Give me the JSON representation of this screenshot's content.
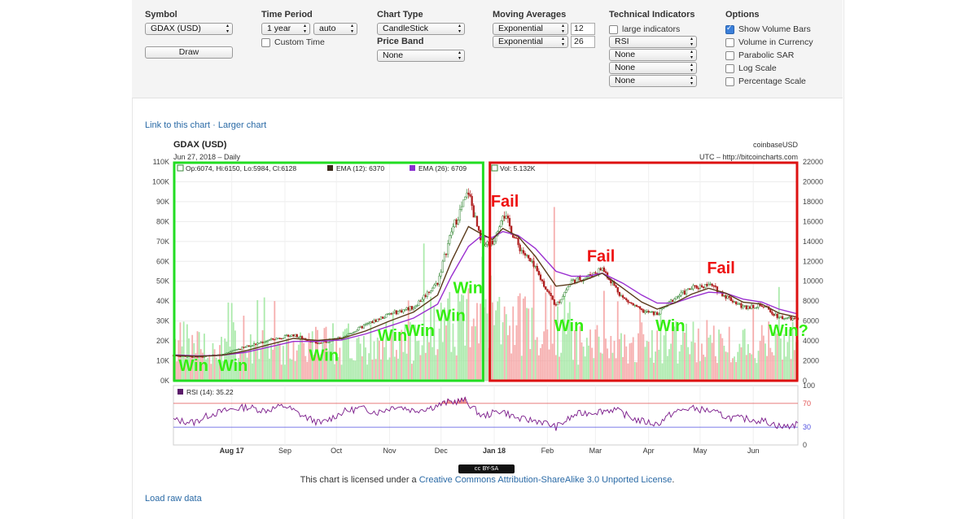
{
  "controls": {
    "symbol": {
      "heading": "Symbol",
      "value": "GDAX (USD)",
      "draw_label": "Draw"
    },
    "time_period": {
      "heading": "Time Period",
      "range": "1 year",
      "resolution": "auto",
      "custom_time_label": "Custom Time"
    },
    "chart_type": {
      "heading": "Chart Type",
      "value": "CandleStick",
      "price_band_heading": "Price Band",
      "price_band": "None"
    },
    "moving_averages": {
      "heading": "Moving Averages",
      "ma1_type": "Exponential",
      "ma1_period": "12",
      "ma2_type": "Exponential",
      "ma2_period": "26"
    },
    "technical_indicators": {
      "heading": "Technical Indicators",
      "large_label": "large indicators",
      "ind1": "RSI",
      "ind2": "None",
      "ind3": "None",
      "ind4": "None"
    },
    "options": {
      "heading": "Options",
      "items": [
        {
          "label": "Show Volume Bars",
          "checked": true
        },
        {
          "label": "Volume in Currency",
          "checked": false
        },
        {
          "label": "Parabolic SAR",
          "checked": false
        },
        {
          "label": "Log Scale",
          "checked": false
        },
        {
          "label": "Percentage Scale",
          "checked": false
        }
      ]
    }
  },
  "links": {
    "chart_link": "Link to this chart",
    "separator": " · ",
    "larger_chart": "Larger chart",
    "raw_data": "Load raw data"
  },
  "license": {
    "prefix": "This chart is licensed under a ",
    "link": "Creative Commons Attribution-ShareAlike 3.0 Unported License",
    "suffix": ".",
    "badge": "cc BY-SA"
  },
  "colors": {
    "win_box": "#22dd22",
    "fail_box": "#dd1111",
    "win_text": "#33ee11",
    "fail_text": "#ee1111",
    "ema12": "#5a3a1a",
    "ema26": "#9a2fd0",
    "rsi": "#7a1a8a",
    "up_candle": "#3a8a3a",
    "down_candle": "#b02020",
    "vol_up": "#9ee69e",
    "vol_down": "#f5a0a0"
  },
  "chart_data": {
    "type": "candlestick",
    "title": "GDAX (USD)",
    "subtitle": "Jun 27, 2018 – Daily",
    "source": "coinbaseUSD",
    "source_utc": "UTC – http://bitcoincharts.com",
    "legend": {
      "ohlc": "Op:6074, Hi:6150, Lo:5984, Cl:6128",
      "ema12": "EMA (12): 6370",
      "ema26": "EMA (26): 6709",
      "vol": "Vol: 5.132K",
      "rsi": "RSI (14): 35.22"
    },
    "volume_axis": {
      "ticks": [
        "0K",
        "10K",
        "20K",
        "30K",
        "40K",
        "50K",
        "60K",
        "70K",
        "80K",
        "90K",
        "100K",
        "110K"
      ],
      "ylim": [
        0,
        110000
      ]
    },
    "price_axis": {
      "ticks": [
        "0",
        "2000",
        "4000",
        "6000",
        "8000",
        "10000",
        "12000",
        "14000",
        "16000",
        "18000",
        "20000",
        "22000"
      ],
      "ylim": [
        0,
        22000
      ]
    },
    "rsi_axis": {
      "ticks": [
        "0",
        "30",
        "70",
        "100"
      ],
      "ylim": [
        0,
        100
      ],
      "levels": [
        30,
        70
      ]
    },
    "x_axis": {
      "labels": [
        "Aug 17",
        "Sep",
        "Oct",
        "Nov",
        "Dec",
        "Jan 18",
        "Feb",
        "Mar",
        "Apr",
        "May",
        "Jun"
      ],
      "positions": [
        "2017-08-01",
        "2017-09-01",
        "2017-10-01",
        "2017-11-01",
        "2017-12-01",
        "2018-01-01",
        "2018-02-01",
        "2018-03-01",
        "2018-04-01",
        "2018-05-01",
        "2018-06-01"
      ],
      "range": [
        "2017-06-28",
        "2018-06-27"
      ]
    },
    "price_series": {
      "x": [
        "2017-06-28",
        "2017-07-12",
        "2017-07-26",
        "2017-08-09",
        "2017-08-23",
        "2017-09-06",
        "2017-09-20",
        "2017-10-04",
        "2017-10-18",
        "2017-11-01",
        "2017-11-15",
        "2017-11-29",
        "2017-12-07",
        "2017-12-17",
        "2017-12-24",
        "2017-12-31",
        "2018-01-06",
        "2018-01-15",
        "2018-01-25",
        "2018-02-06",
        "2018-02-15",
        "2018-02-24",
        "2018-03-05",
        "2018-03-17",
        "2018-03-28",
        "2018-04-06",
        "2018-04-16",
        "2018-04-26",
        "2018-05-06",
        "2018-05-16",
        "2018-05-26",
        "2018-06-06",
        "2018-06-16",
        "2018-06-27"
      ],
      "close": [
        2550,
        2350,
        2650,
        3400,
        4100,
        4600,
        3750,
        4300,
        5600,
        6700,
        7400,
        9900,
        15000,
        19000,
        14000,
        13800,
        17000,
        13600,
        11200,
        7500,
        10000,
        10400,
        11300,
        8300,
        7000,
        6700,
        8300,
        9300,
        9700,
        8500,
        7400,
        7600,
        6400,
        6128
      ]
    },
    "ema12_series": [
      2550,
      2450,
      2550,
      3000,
      3650,
      4250,
      4050,
      4250,
      5000,
      6000,
      6900,
      8600,
      12000,
      15500,
      14800,
      14200,
      15300,
      14500,
      12500,
      9500,
      9700,
      10200,
      10800,
      9300,
      7900,
      7200,
      7800,
      8700,
      9300,
      8800,
      7900,
      7700,
      6800,
      6370
    ],
    "ema26_series": [
      2600,
      2500,
      2550,
      2850,
      3400,
      3950,
      3950,
      4100,
      4700,
      5500,
      6300,
      7700,
      10500,
      13500,
      14500,
      14400,
      15000,
      14600,
      13300,
      11000,
      10500,
      10500,
      10800,
      9800,
      8600,
      7800,
      7800,
      8400,
      8900,
      8800,
      8200,
      7900,
      7200,
      6709
    ],
    "rsi_series": {
      "x": [
        "2017-06-28",
        "2017-07-10",
        "2017-07-20",
        "2017-08-01",
        "2017-08-10",
        "2017-08-20",
        "2017-09-01",
        "2017-09-12",
        "2017-09-22",
        "2017-10-05",
        "2017-10-15",
        "2017-10-25",
        "2017-11-05",
        "2017-11-15",
        "2017-11-25",
        "2017-12-05",
        "2017-12-15",
        "2017-12-25",
        "2018-01-05",
        "2018-01-15",
        "2018-01-28",
        "2018-02-06",
        "2018-02-18",
        "2018-03-01",
        "2018-03-12",
        "2018-03-25",
        "2018-04-06",
        "2018-04-15",
        "2018-04-25",
        "2018-05-06",
        "2018-05-18",
        "2018-05-28",
        "2018-06-08",
        "2018-06-18",
        "2018-06-27"
      ],
      "values": [
        42,
        38,
        52,
        60,
        64,
        58,
        66,
        48,
        36,
        56,
        62,
        55,
        66,
        58,
        63,
        72,
        75,
        48,
        58,
        44,
        40,
        30,
        52,
        56,
        60,
        42,
        35,
        54,
        62,
        58,
        46,
        44,
        40,
        30,
        35
      ]
    },
    "annotations": [
      {
        "text": "Win",
        "x": "2017-07-01",
        "y": 1000
      },
      {
        "text": "Win",
        "x": "2017-07-24",
        "y": 1000
      },
      {
        "text": "Win",
        "x": "2017-09-15",
        "y": 2000
      },
      {
        "text": "Win",
        "x": "2017-10-25",
        "y": 4000
      },
      {
        "text": "Win",
        "x": "2017-11-10",
        "y": 4500
      },
      {
        "text": "Win",
        "x": "2017-11-28",
        "y": 6000
      },
      {
        "text": "Win",
        "x": "2017-12-08",
        "y": 8800
      },
      {
        "text": "Fail",
        "x": "2017-12-30",
        "y": 17500
      },
      {
        "text": "Win",
        "x": "2018-02-05",
        "y": 5000
      },
      {
        "text": "Fail",
        "x": "2018-02-24",
        "y": 12000
      },
      {
        "text": "Win",
        "x": "2018-04-05",
        "y": 5000
      },
      {
        "text": "Fail",
        "x": "2018-05-05",
        "y": 10800
      },
      {
        "text": "Win?",
        "x": "2018-06-10",
        "y": 4500
      }
    ],
    "boxes": [
      {
        "label": "Win",
        "from": "2017-06-28",
        "to": "2017-12-26"
      },
      {
        "label": "Fail",
        "from": "2017-12-29",
        "to": "2018-06-27"
      }
    ]
  }
}
